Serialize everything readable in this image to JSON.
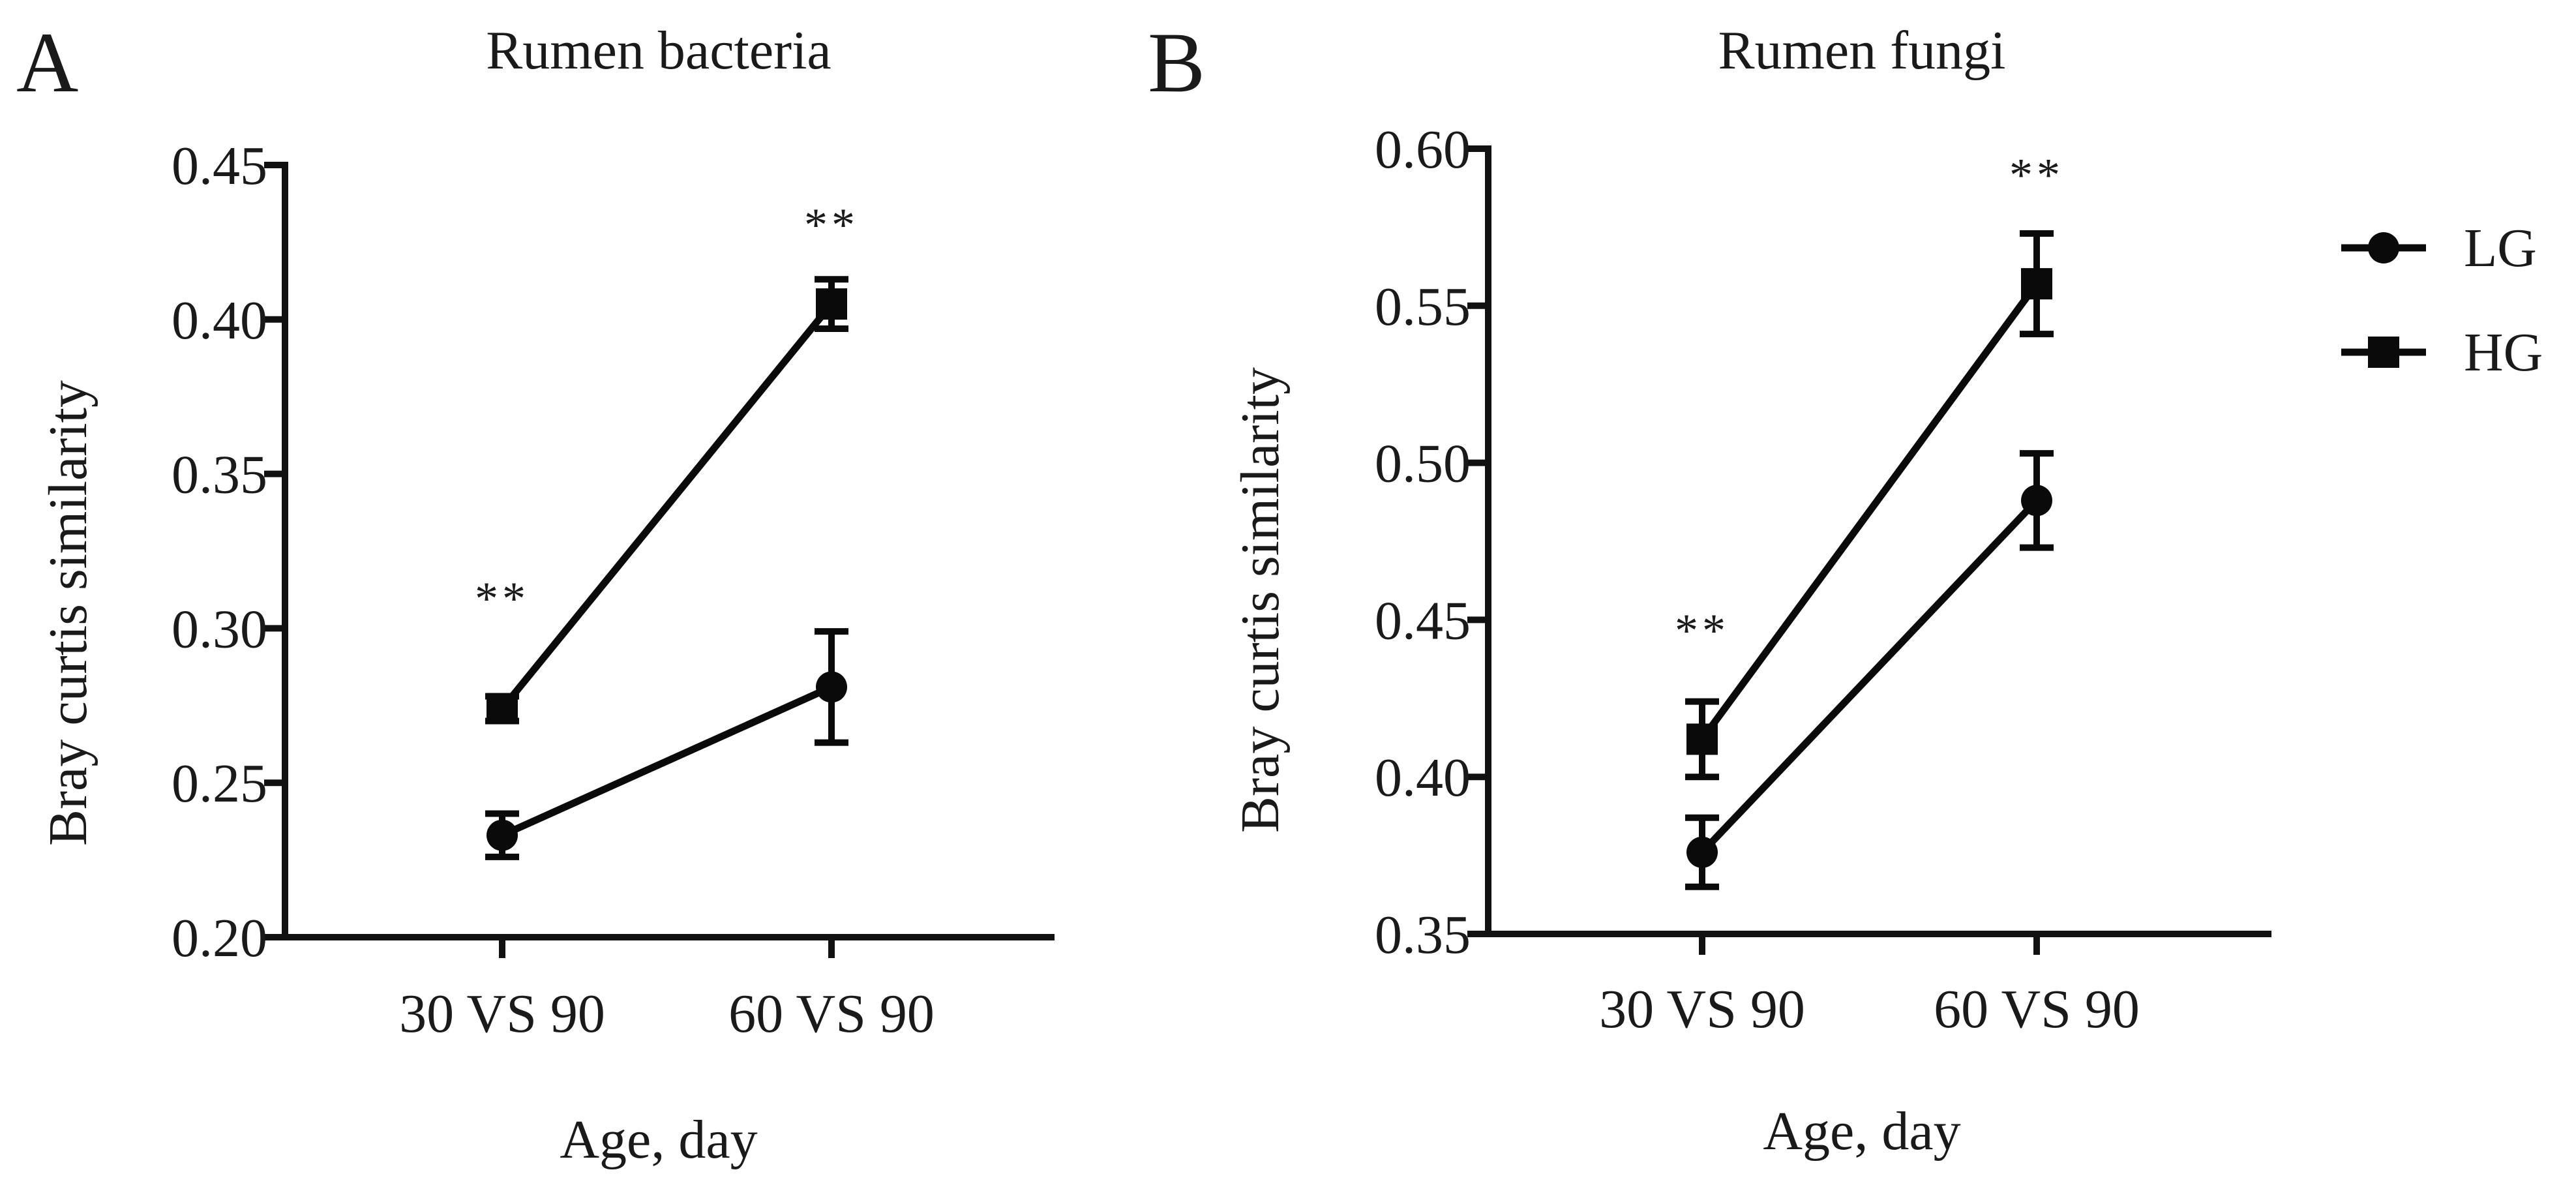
{
  "chart_data": [
    {
      "type": "line",
      "panel_label": "A",
      "title": "Rumen bacteria",
      "xlabel": "Age, day",
      "ylabel": "Bray curtis similarity",
      "categories": [
        "30 VS 90",
        "60 VS 90"
      ],
      "ylim": [
        0.2,
        0.45
      ],
      "yticks": [
        0.2,
        0.25,
        0.3,
        0.35,
        0.4,
        0.45
      ],
      "ytick_labels": [
        "0.20",
        "0.25",
        "0.30",
        "0.35",
        "0.40",
        "0.45"
      ],
      "grid": false,
      "series": [
        {
          "name": "LG",
          "marker": "circle",
          "values": [
            0.233,
            0.281
          ],
          "errors": [
            0.007,
            0.018
          ]
        },
        {
          "name": "HG",
          "marker": "square",
          "values": [
            0.274,
            0.405
          ],
          "errors": [
            0.004,
            0.008
          ]
        }
      ],
      "annotations": [
        {
          "category_index": 0,
          "text": "**",
          "y": 0.31
        },
        {
          "category_index": 1,
          "text": "**",
          "y": 0.431
        }
      ]
    },
    {
      "type": "line",
      "panel_label": "B",
      "title": "Rumen fungi",
      "xlabel": "Age, day",
      "ylabel": "Bray curtis similarity",
      "categories": [
        "30 VS 90",
        "60 VS 90"
      ],
      "ylim": [
        0.35,
        0.6
      ],
      "yticks": [
        0.35,
        0.4,
        0.45,
        0.5,
        0.55,
        0.6
      ],
      "ytick_labels": [
        "0.35",
        "0.40",
        "0.45",
        "0.50",
        "0.55",
        "0.60"
      ],
      "grid": false,
      "series": [
        {
          "name": "LG",
          "marker": "circle",
          "values": [
            0.376,
            0.488
          ],
          "errors": [
            0.011,
            0.015
          ]
        },
        {
          "name": "HG",
          "marker": "square",
          "values": [
            0.412,
            0.557
          ],
          "errors": [
            0.012,
            0.016
          ]
        }
      ],
      "annotations": [
        {
          "category_index": 0,
          "text": "**",
          "y": 0.447
        },
        {
          "category_index": 1,
          "text": "**",
          "y": 0.592
        }
      ]
    }
  ],
  "legend": {
    "placement": "right",
    "entries": [
      {
        "name": "LG",
        "marker": "circle"
      },
      {
        "name": "HG",
        "marker": "square"
      }
    ]
  },
  "colors": {
    "ink": "#0a0a0a",
    "background": "#ffffff"
  }
}
